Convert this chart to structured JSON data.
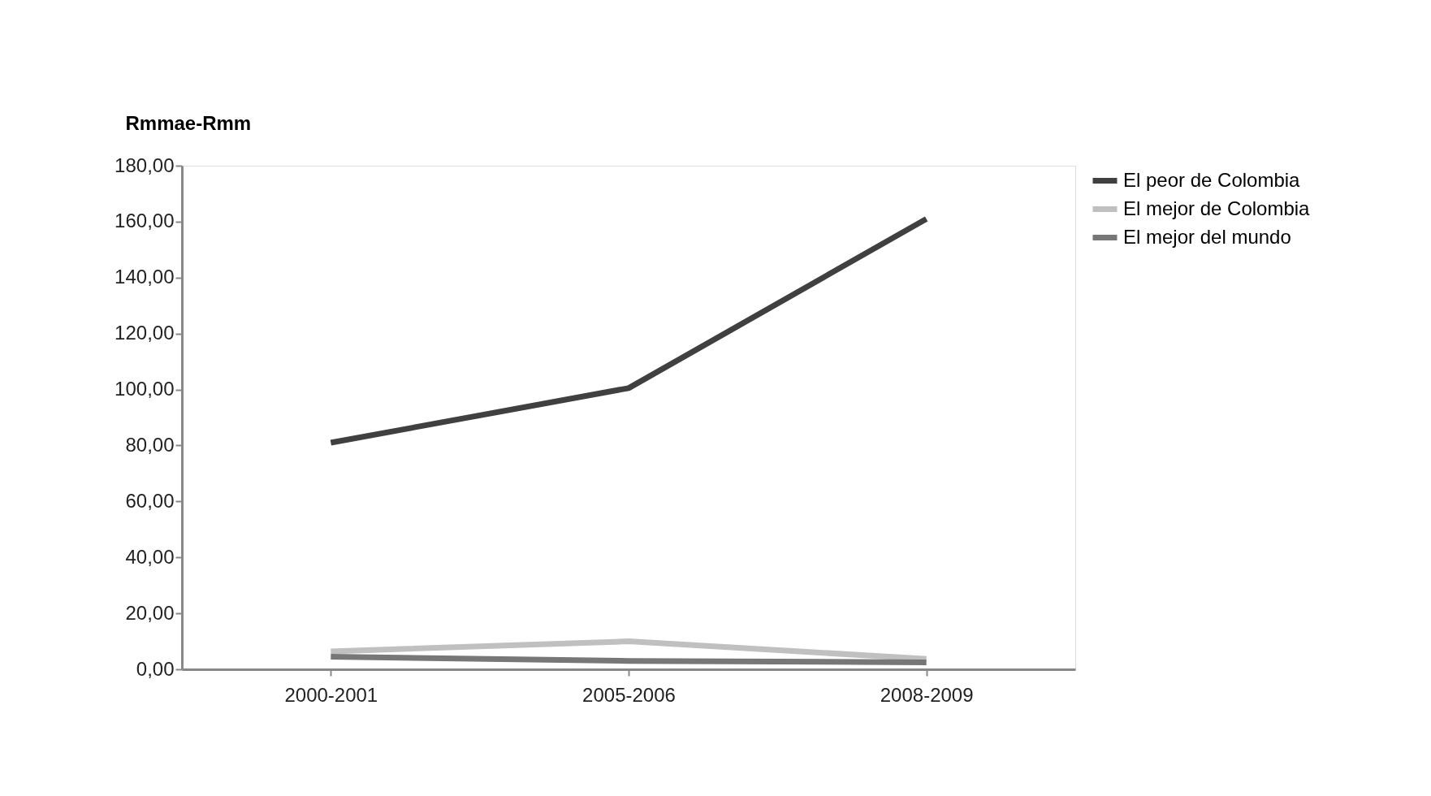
{
  "chart_data": {
    "type": "line",
    "ylabel": "Rmmae-Rmm",
    "categories": [
      "2000-2001",
      "2005-2006",
      "2008-2009"
    ],
    "series": [
      {
        "name": "El peor de Colombia",
        "color": "#404040",
        "values": [
          81,
          100.5,
          161
        ]
      },
      {
        "name": "El mejor de Colombia",
        "color": "#c0c0c0",
        "values": [
          6.4,
          10,
          3.7
        ]
      },
      {
        "name": "El mejor del mundo",
        "color": "#777777",
        "values": [
          4.5,
          3,
          2.5
        ]
      }
    ],
    "ylim": [
      0,
      180
    ],
    "yticks": [
      {
        "value": 0,
        "label": "0,00"
      },
      {
        "value": 20,
        "label": "20,00"
      },
      {
        "value": 40,
        "label": "40,00"
      },
      {
        "value": 60,
        "label": "60,00"
      },
      {
        "value": 80,
        "label": "80,00"
      },
      {
        "value": 100,
        "label": "100,00"
      },
      {
        "value": 120,
        "label": "120,00"
      },
      {
        "value": 140,
        "label": "140,00"
      },
      {
        "value": 160,
        "label": "160,00"
      },
      {
        "value": 180,
        "label": "180,00"
      }
    ],
    "legend": "right",
    "grid": false,
    "marker": "none",
    "line_style": "solid"
  }
}
